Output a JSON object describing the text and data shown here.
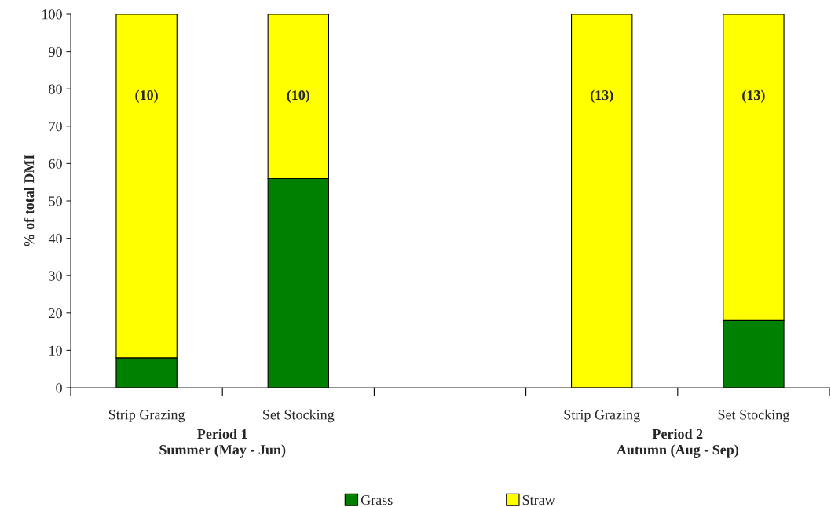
{
  "chart_data": {
    "type": "bar",
    "stacked": true,
    "ylabel": "% of total DMI",
    "categories": [
      "Strip Grazing",
      "Set Stocking",
      null,
      "Strip Grazing",
      "Set Stocking"
    ],
    "series": [
      {
        "name": "Grass",
        "color": "#008000",
        "values": [
          8,
          56,
          null,
          0,
          18
        ]
      },
      {
        "name": "Straw",
        "color": "#ffff00",
        "values": [
          92,
          44,
          null,
          100,
          82
        ]
      }
    ],
    "ylim": [
      0,
      100
    ],
    "yticks": [
      0,
      10,
      20,
      30,
      40,
      50,
      60,
      70,
      80,
      90,
      100
    ],
    "annotations": [
      "(10)",
      "(10)",
      "(13)",
      "(13)",
      "Period 1\nSummer (May - Jun)",
      "Period 2\nAutumn (Aug - Sep)"
    ],
    "grid": false,
    "legend": "bottom"
  }
}
